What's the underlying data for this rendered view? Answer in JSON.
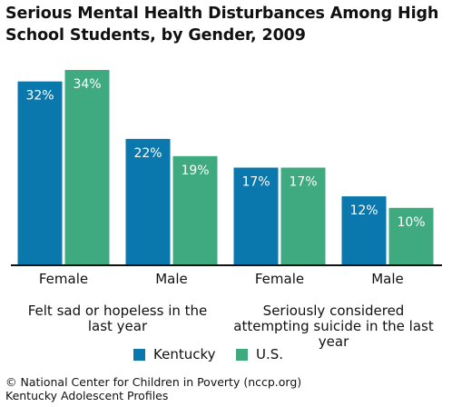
{
  "title": "Serious Mental Health Disturbances Among High School Students, by Gender, 2009",
  "legend": {
    "kentucky": "Kentucky",
    "us": "U.S."
  },
  "footer": {
    "line1": "© National Center for Children in Poverty (nccp.org)",
    "line2": "Kentucky Adolescent Profiles"
  },
  "colors": {
    "kentucky": "#0a78ad",
    "us": "#3faa80"
  },
  "chart_data": {
    "type": "bar",
    "title": "Serious Mental Health Disturbances Among High School Students, by Gender, 2009",
    "categories": [
      "Female",
      "Male",
      "Female",
      "Male"
    ],
    "groups": [
      {
        "label_lines": [
          "Felt sad or hopeless in the",
          "last year"
        ],
        "categories": [
          0,
          1
        ]
      },
      {
        "label_lines": [
          "Seriously considered",
          "attempting suicide in the last",
          "year"
        ],
        "categories": [
          2,
          3
        ]
      }
    ],
    "series": [
      {
        "name": "Kentucky",
        "values": [
          32,
          22,
          17,
          12
        ],
        "labels": [
          "32%",
          "22%",
          "17%",
          "12%"
        ]
      },
      {
        "name": "U.S.",
        "values": [
          34,
          19,
          17,
          10
        ],
        "labels": [
          "34%",
          "19%",
          "17%",
          "10%"
        ]
      }
    ],
    "ylim": [
      0,
      34
    ],
    "grid": false,
    "legend_position": "bottom",
    "xlabel": "",
    "ylabel": ""
  }
}
